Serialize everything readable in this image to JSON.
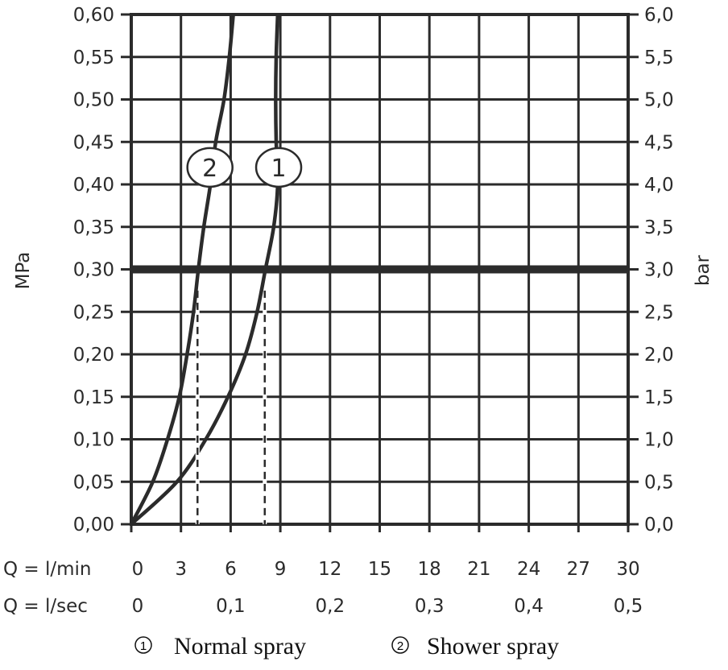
{
  "chart_data": {
    "type": "line",
    "title": "",
    "ylabel_left": "MPa",
    "ylabel_right": "bar",
    "xlabel_rows": [
      {
        "label": "Q = l/min",
        "ticks": [
          "0",
          "3",
          "6",
          "9",
          "12",
          "15",
          "18",
          "21",
          "24",
          "27",
          "30"
        ],
        "values": [
          0,
          3,
          6,
          9,
          12,
          15,
          18,
          21,
          24,
          27,
          30
        ]
      },
      {
        "label": "Q = l/sec",
        "ticks": [
          "0",
          "0,1",
          "0,2",
          "0,3",
          "0,4",
          "0,5"
        ],
        "values": [
          0,
          0.1,
          0.2,
          0.3,
          0.4,
          0.5
        ]
      }
    ],
    "xlim": [
      0,
      30
    ],
    "ylim": [
      0,
      0.6
    ],
    "yticks_left": [
      "0,00",
      "0,05",
      "0,10",
      "0,15",
      "0,20",
      "0,25",
      "0,30",
      "0,35",
      "0,40",
      "0,45",
      "0,50",
      "0,55",
      "0,60"
    ],
    "yticks_right": [
      "0,0",
      "0,5",
      "1,0",
      "1,5",
      "2,0",
      "2,5",
      "3,0",
      "3,5",
      "4,0",
      "4,5",
      "5,0",
      "5,5",
      "6,0"
    ],
    "grid": true,
    "reference_line": {
      "y": 0.3
    },
    "series": [
      {
        "name": "Normal spray",
        "marker": "1",
        "x": [
          0,
          2.76,
          4.5,
          5.84,
          6.9,
          7.6,
          8.1,
          8.6,
          8.84,
          8.75,
          8.72,
          8.75,
          8.84
        ],
        "y": [
          0,
          0.05,
          0.1,
          0.15,
          0.2,
          0.25,
          0.3,
          0.35,
          0.4,
          0.45,
          0.5,
          0.55,
          0.6
        ],
        "label_at": [
          8.9,
          0.42
        ],
        "flow_at_3bar": 8.06
      },
      {
        "name": "Shower spray",
        "marker": "2",
        "x": [
          0,
          1.3,
          2.19,
          2.9,
          3.37,
          3.76,
          4.05,
          4.38,
          4.78,
          5.1,
          5.6,
          5.92,
          6.16
        ],
        "y": [
          0,
          0.05,
          0.1,
          0.15,
          0.2,
          0.25,
          0.3,
          0.35,
          0.4,
          0.45,
          0.5,
          0.55,
          0.6
        ],
        "label_at": [
          4.75,
          0.42
        ],
        "flow_at_3bar": 4.0
      }
    ],
    "legend": [
      {
        "marker": "1",
        "label": "Normal spray"
      },
      {
        "marker": "2",
        "label": "Shower spray"
      }
    ],
    "legend_placement": "bottom"
  }
}
